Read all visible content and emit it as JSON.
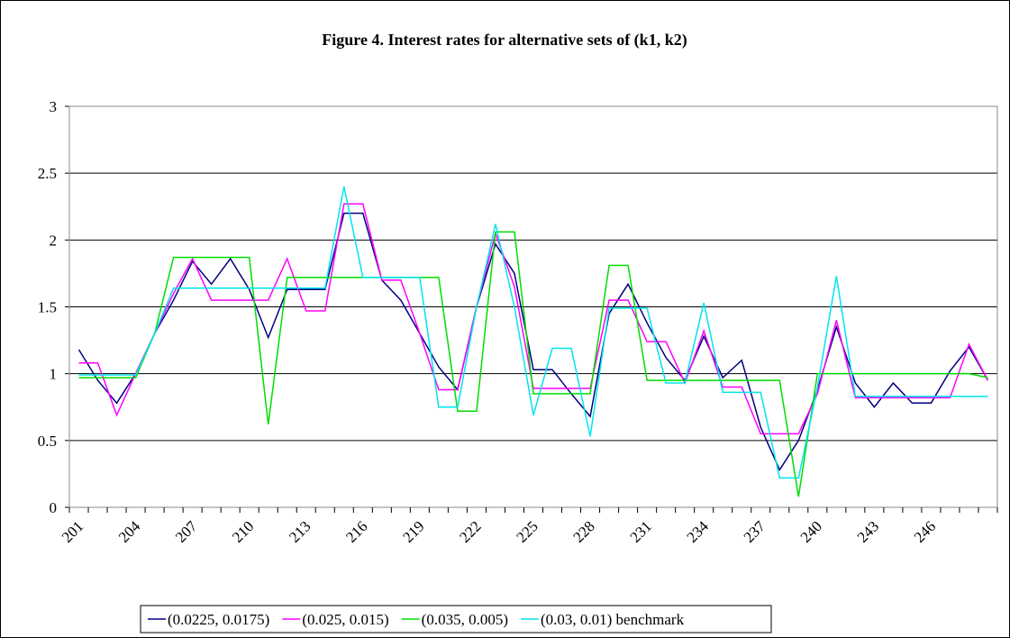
{
  "chart_data": {
    "type": "line",
    "title": "Figure 4. Interest rates for alternative sets of (k1, k2)",
    "categories": [
      "201",
      null,
      null,
      "204",
      null,
      null,
      "207",
      null,
      null,
      "210",
      null,
      null,
      "213",
      null,
      null,
      "216",
      null,
      null,
      "219",
      null,
      null,
      "222",
      null,
      null,
      "225",
      null,
      null,
      "228",
      null,
      null,
      "231",
      null,
      null,
      "234",
      null,
      null,
      "237",
      null,
      null,
      "240",
      null,
      null,
      "243",
      null,
      null,
      "246",
      null,
      null,
      null
    ],
    "ylim": [
      0,
      3
    ],
    "yticks": [
      0,
      0.5,
      1,
      1.5,
      2,
      2.5,
      3
    ],
    "grid": true,
    "series": [
      {
        "name": "(0.0225, 0.0175)",
        "color": "#000080",
        "values": [
          1.18,
          0.95,
          0.78,
          1.0,
          1.3,
          1.55,
          1.84,
          1.67,
          1.86,
          1.63,
          1.27,
          1.63,
          1.63,
          1.63,
          2.2,
          2.2,
          1.7,
          1.55,
          1.3,
          1.05,
          0.88,
          1.5,
          1.97,
          1.75,
          1.03,
          1.03,
          0.85,
          0.68,
          1.45,
          1.67,
          1.38,
          1.12,
          0.95,
          1.28,
          0.97,
          1.1,
          0.6,
          0.28,
          0.5,
          0.88,
          1.35,
          0.93,
          0.75,
          0.93,
          0.78,
          0.78,
          1.02,
          1.2,
          0.95
        ]
      },
      {
        "name": "(0.025, 0.015)",
        "color": "#ff00ff",
        "values": [
          1.08,
          1.08,
          0.69,
          1.0,
          1.3,
          1.6,
          1.86,
          1.55,
          1.55,
          1.55,
          1.55,
          1.86,
          1.47,
          1.47,
          2.27,
          2.27,
          1.7,
          1.7,
          1.3,
          0.88,
          0.88,
          1.5,
          2.05,
          1.65,
          0.89,
          0.89,
          0.89,
          0.89,
          1.55,
          1.55,
          1.24,
          1.24,
          0.93,
          1.32,
          0.9,
          0.9,
          0.55,
          0.55,
          0.55,
          0.85,
          1.4,
          0.82,
          0.82,
          0.82,
          0.82,
          0.82,
          0.82,
          1.22,
          0.95
        ]
      },
      {
        "name": "(0.035, 0.005)",
        "color": "#00dd00",
        "values": [
          0.97,
          0.97,
          0.97,
          0.97,
          1.3,
          1.87,
          1.87,
          1.87,
          1.87,
          1.87,
          0.62,
          1.72,
          1.72,
          1.72,
          1.72,
          1.72,
          1.72,
          1.72,
          1.72,
          1.72,
          0.72,
          0.72,
          2.06,
          2.06,
          0.85,
          0.85,
          0.85,
          0.85,
          1.81,
          1.81,
          0.95,
          0.95,
          0.95,
          0.95,
          0.95,
          0.95,
          0.95,
          0.95,
          0.08,
          1.0,
          1.0,
          1.0,
          1.0,
          1.0,
          1.0,
          1.0,
          1.0,
          1.0,
          0.97
        ]
      },
      {
        "name": "(0.03, 0.01) benchmark",
        "color": "#00e5ee",
        "values": [
          0.99,
          0.99,
          0.99,
          0.99,
          1.3,
          1.64,
          1.64,
          1.64,
          1.64,
          1.64,
          1.64,
          1.64,
          1.64,
          1.64,
          2.4,
          1.72,
          1.72,
          1.72,
          1.72,
          0.75,
          0.75,
          1.5,
          2.12,
          1.5,
          0.69,
          1.19,
          1.19,
          0.53,
          1.49,
          1.49,
          1.49,
          0.93,
          0.93,
          1.53,
          0.86,
          0.86,
          0.86,
          0.22,
          0.22,
          0.9,
          1.73,
          0.83,
          0.83,
          0.83,
          0.83,
          0.83,
          0.83,
          0.83,
          0.83
        ]
      }
    ]
  }
}
